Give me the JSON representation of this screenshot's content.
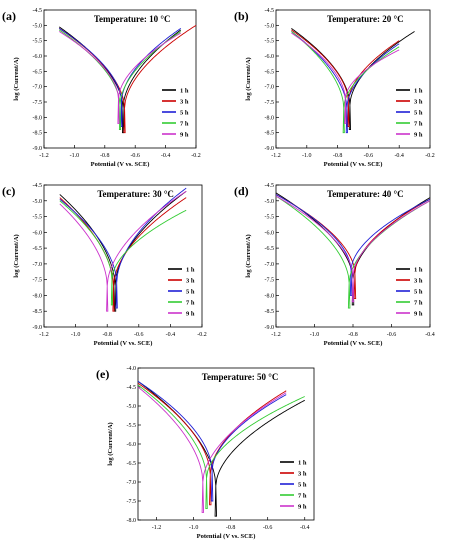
{
  "figure": {
    "colors": {
      "1 h": "#000000",
      "3 h": "#cc0000",
      "5 h": "#1f1fd6",
      "7 h": "#33cc33",
      "9 h": "#cc33cc"
    }
  },
  "chart_data": [
    {
      "panel": "(a)",
      "type": "line",
      "title": "Temperature: 10 °C",
      "xlabel": "Potential (V vs. SCE)",
      "ylabel": "log (Current/A)",
      "xlim": [
        -1.2,
        -0.2
      ],
      "ylim": [
        -9.0,
        -4.5
      ],
      "xticks": [
        -1.2,
        -1.0,
        -0.8,
        -0.6,
        -0.4,
        -0.2
      ],
      "yticks": [
        -9.0,
        -8.5,
        -8.0,
        -7.5,
        -7.0,
        -6.5,
        -6.0,
        -5.5,
        -5.0,
        -4.5
      ],
      "legend": [
        "1 h",
        "3 h",
        "5 h",
        "7 h",
        "9 h"
      ],
      "legend_position": "lower-right",
      "series": [
        {
          "name": "1 h",
          "ecorr": -0.68,
          "ymin": -8.5,
          "xstart": -1.1,
          "ystart": -5.05,
          "xend": -0.3,
          "yend": -5.15
        },
        {
          "name": "3 h",
          "ecorr": -0.67,
          "ymin": -8.5,
          "xstart": -1.1,
          "ystart": -5.1,
          "xend": -0.2,
          "yend": -5.0
        },
        {
          "name": "5 h",
          "ecorr": -0.69,
          "ymin": -8.3,
          "xstart": -1.1,
          "ystart": -5.1,
          "xend": -0.3,
          "yend": -5.1
        },
        {
          "name": "7 h",
          "ecorr": -0.7,
          "ymin": -8.4,
          "xstart": -1.1,
          "ystart": -5.15,
          "xend": -0.3,
          "yend": -5.2
        },
        {
          "name": "9 h",
          "ecorr": -0.71,
          "ymin": -8.2,
          "xstart": -1.1,
          "ystart": -5.2,
          "xend": -0.3,
          "yend": -5.25
        }
      ]
    },
    {
      "panel": "(b)",
      "type": "line",
      "title": "Temperature: 20 °C",
      "xlabel": "Potential (V vs. SCE)",
      "ylabel": "log (Current/A)",
      "xlim": [
        -1.2,
        -0.2
      ],
      "ylim": [
        -9.0,
        -4.5
      ],
      "xticks": [
        -1.2,
        -1.0,
        -0.8,
        -0.6,
        -0.4,
        -0.2
      ],
      "yticks": [
        -9.0,
        -8.5,
        -8.0,
        -7.5,
        -7.0,
        -6.5,
        -6.0,
        -5.5,
        -5.0,
        -4.5
      ],
      "legend": [
        "1 h",
        "3 h",
        "5 h",
        "7 h",
        "9 h"
      ],
      "legend_position": "lower-right",
      "series": [
        {
          "name": "1 h",
          "ecorr": -0.72,
          "ymin": -8.4,
          "xstart": -1.1,
          "ystart": -5.1,
          "xend": -0.3,
          "yend": -5.2
        },
        {
          "name": "3 h",
          "ecorr": -0.73,
          "ymin": -8.3,
          "xstart": -1.1,
          "ystart": -5.15,
          "xend": -0.4,
          "yend": -5.5
        },
        {
          "name": "5 h",
          "ecorr": -0.74,
          "ymin": -8.5,
          "xstart": -1.1,
          "ystart": -5.2,
          "xend": -0.4,
          "yend": -5.6
        },
        {
          "name": "7 h",
          "ecorr": -0.76,
          "ymin": -8.5,
          "xstart": -1.1,
          "ystart": -5.2,
          "xend": -0.4,
          "yend": -5.7
        },
        {
          "name": "9 h",
          "ecorr": -0.75,
          "ymin": -8.2,
          "xstart": -1.1,
          "ystart": -5.25,
          "xend": -0.4,
          "yend": -5.8
        }
      ]
    },
    {
      "panel": "(c)",
      "type": "line",
      "title": "Temperature: 30 °C",
      "xlabel": "Potential (V vs. SCE)",
      "ylabel": "log (Current/A)",
      "xlim": [
        -1.2,
        -0.2
      ],
      "ylim": [
        -9.0,
        -4.5
      ],
      "xticks": [
        -1.2,
        -1.0,
        -0.8,
        -0.6,
        -0.4,
        -0.2
      ],
      "yticks": [
        -9.0,
        -8.5,
        -8.0,
        -7.5,
        -7.0,
        -6.5,
        -6.0,
        -5.5,
        -5.0,
        -4.5
      ],
      "legend": [
        "1 h",
        "3 h",
        "5 h",
        "7 h",
        "9 h"
      ],
      "legend_position": "lower-right",
      "series": [
        {
          "name": "1 h",
          "ecorr": -0.75,
          "ymin": -8.5,
          "xstart": -1.1,
          "ystart": -4.8,
          "xend": -0.3,
          "yend": -4.7
        },
        {
          "name": "3 h",
          "ecorr": -0.76,
          "ymin": -8.5,
          "xstart": -1.1,
          "ystart": -4.9,
          "xend": -0.3,
          "yend": -4.9
        },
        {
          "name": "5 h",
          "ecorr": -0.74,
          "ymin": -8.4,
          "xstart": -1.1,
          "ystart": -4.95,
          "xend": -0.3,
          "yend": -4.6
        },
        {
          "name": "7 h",
          "ecorr": -0.77,
          "ymin": -8.3,
          "xstart": -1.1,
          "ystart": -5.0,
          "xend": -0.3,
          "yend": -5.3
        },
        {
          "name": "9 h",
          "ecorr": -0.8,
          "ymin": -8.5,
          "xstart": -1.1,
          "ystart": -5.1,
          "xend": -0.3,
          "yend": -4.7
        }
      ]
    },
    {
      "panel": "(d)",
      "type": "line",
      "title": "Temperature: 40 °C",
      "xlabel": "Potential (V vs. SCE)",
      "ylabel": "log (Current/A)",
      "xlim": [
        -1.2,
        -0.4
      ],
      "ylim": [
        -9.0,
        -4.5
      ],
      "xticks": [
        -1.2,
        -1.0,
        -0.8,
        -0.6,
        -0.4
      ],
      "yticks": [
        -9.0,
        -8.5,
        -8.0,
        -7.5,
        -7.0,
        -6.5,
        -6.0,
        -5.5,
        -5.0,
        -4.5
      ],
      "legend": [
        "1 h",
        "3 h",
        "5 h",
        "7 h",
        "9 h"
      ],
      "legend_position": "lower-right",
      "series": [
        {
          "name": "1 h",
          "ecorr": -0.8,
          "ymin": -8.3,
          "xstart": -1.2,
          "ystart": -4.75,
          "xend": -0.4,
          "yend": -4.9
        },
        {
          "name": "3 h",
          "ecorr": -0.79,
          "ymin": -8.1,
          "xstart": -1.2,
          "ystart": -4.8,
          "xend": -0.4,
          "yend": -4.95
        },
        {
          "name": "5 h",
          "ecorr": -0.81,
          "ymin": -8.0,
          "xstart": -1.2,
          "ystart": -4.8,
          "xend": -0.4,
          "yend": -4.95
        },
        {
          "name": "7 h",
          "ecorr": -0.82,
          "ymin": -8.4,
          "xstart": -1.2,
          "ystart": -4.85,
          "xend": -0.4,
          "yend": -5.0
        },
        {
          "name": "9 h",
          "ecorr": -0.8,
          "ymin": -8.2,
          "xstart": -1.2,
          "ystart": -4.85,
          "xend": -0.4,
          "yend": -5.0
        }
      ]
    },
    {
      "panel": "(e)",
      "type": "line",
      "title": "Temperature: 50 °C",
      "xlabel": "Potential (V vs. SCE)",
      "ylabel": "log (Current/A)",
      "xlim": [
        -1.3,
        -0.35
      ],
      "ylim": [
        -8.0,
        -4.0
      ],
      "xticks": [
        -1.2,
        -1.0,
        -0.8,
        -0.6,
        -0.4
      ],
      "yticks": [
        -8.0,
        -7.5,
        -7.0,
        -6.5,
        -6.0,
        -5.5,
        -5.0,
        -4.5,
        -4.0
      ],
      "legend": [
        "1 h",
        "3 h",
        "5 h",
        "7 h",
        "9 h"
      ],
      "legend_position": "lower-right",
      "series": [
        {
          "name": "1 h",
          "ecorr": -0.88,
          "ymin": -7.9,
          "xstart": -1.3,
          "ystart": -4.35,
          "xend": -0.4,
          "yend": -4.85
        },
        {
          "name": "3 h",
          "ecorr": -0.91,
          "ymin": -7.6,
          "xstart": -1.3,
          "ystart": -4.4,
          "xend": -0.5,
          "yend": -4.6
        },
        {
          "name": "5 h",
          "ecorr": -0.9,
          "ymin": -7.5,
          "xstart": -1.3,
          "ystart": -4.35,
          "xend": -0.5,
          "yend": -4.7
        },
        {
          "name": "7 h",
          "ecorr": -0.93,
          "ymin": -7.7,
          "xstart": -1.3,
          "ystart": -4.45,
          "xend": -0.4,
          "yend": -4.75
        },
        {
          "name": "9 h",
          "ecorr": -0.95,
          "ymin": -7.8,
          "xstart": -1.3,
          "ystart": -4.5,
          "xend": -0.5,
          "yend": -4.65
        }
      ]
    }
  ]
}
